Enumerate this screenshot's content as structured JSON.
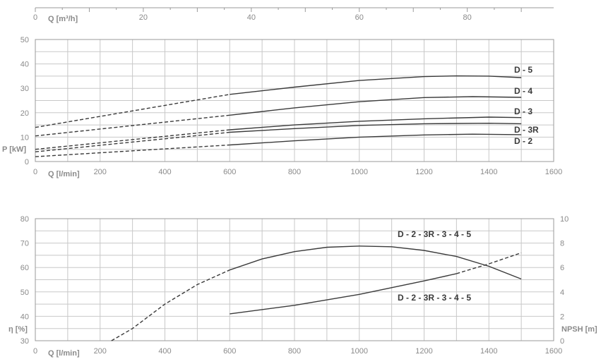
{
  "chart_data": [
    {
      "type": "line",
      "title": "",
      "x_top_axis": {
        "label": "Q [m³/h]",
        "ticks": [
          "0",
          "20",
          "40",
          "60",
          "80"
        ],
        "range": [
          0,
          96
        ]
      },
      "x_axis": {
        "label": "Q [l/min]",
        "ticks": [
          "0",
          "200",
          "400",
          "600",
          "800",
          "1000",
          "1200",
          "1400",
          "1600"
        ],
        "range": [
          0,
          1600
        ]
      },
      "y_axis": {
        "label": "P [kW]",
        "ticks": [
          "0",
          "10",
          "20",
          "30",
          "40",
          "50"
        ],
        "range": [
          0,
          50
        ]
      },
      "grid": true,
      "series": [
        {
          "name": "D - 5",
          "dashed": [
            [
              0,
              14
            ],
            [
              600,
              27.5
            ]
          ],
          "solid": [
            [
              600,
              27.5
            ],
            [
              800,
              30.5
            ],
            [
              1000,
              33.2
            ],
            [
              1200,
              34.8
            ],
            [
              1300,
              35.1
            ],
            [
              1400,
              35
            ],
            [
              1500,
              34.4
            ]
          ]
        },
        {
          "name": "D - 4",
          "dashed": [
            [
              0,
              10.5
            ],
            [
              600,
              19
            ]
          ],
          "solid": [
            [
              600,
              19
            ],
            [
              800,
              22
            ],
            [
              1000,
              24.5
            ],
            [
              1200,
              26.2
            ],
            [
              1350,
              26.6
            ],
            [
              1500,
              26.3
            ]
          ]
        },
        {
          "name": "D - 3",
          "dashed": [
            [
              0,
              5
            ],
            [
              600,
              13
            ]
          ],
          "solid": [
            [
              600,
              13
            ],
            [
              800,
              15
            ],
            [
              1000,
              16.5
            ],
            [
              1200,
              17.5
            ],
            [
              1400,
              18.2
            ],
            [
              1500,
              18
            ]
          ]
        },
        {
          "name": "D - 3R",
          "dashed": [
            [
              0,
              4
            ],
            [
              600,
              12
            ]
          ],
          "solid": [
            [
              600,
              12
            ],
            [
              800,
              13.5
            ],
            [
              1000,
              14.8
            ],
            [
              1200,
              15.5
            ],
            [
              1400,
              15.7
            ],
            [
              1500,
              15.5
            ]
          ]
        },
        {
          "name": "D - 2",
          "dashed": [
            [
              0,
              2
            ],
            [
              600,
              6.8
            ]
          ],
          "solid": [
            [
              600,
              6.8
            ],
            [
              800,
              8.5
            ],
            [
              1000,
              10
            ],
            [
              1200,
              10.9
            ],
            [
              1350,
              11.2
            ],
            [
              1500,
              11
            ]
          ]
        }
      ]
    },
    {
      "type": "line",
      "title": "",
      "x_axis": {
        "label": "Q [l/min]",
        "ticks": [
          "0",
          "200",
          "400",
          "600",
          "800",
          "1000",
          "1200",
          "1400",
          "1600"
        ],
        "range": [
          0,
          1600
        ]
      },
      "y_left_axis": {
        "label": "η [%]",
        "ticks": [
          "30",
          "40",
          "50",
          "60",
          "70",
          "80"
        ],
        "range": [
          30,
          80
        ]
      },
      "y_right_axis": {
        "label": "NPSH [m]",
        "ticks": [
          "0",
          "2",
          "4",
          "6",
          "8",
          "10"
        ],
        "range": [
          0,
          10
        ]
      },
      "grid": true,
      "series": [
        {
          "name": "D - 2 - 3R - 3 - 4 - 5",
          "axis": "left",
          "dashed": [
            [
              235,
              30
            ],
            [
              300,
              35
            ],
            [
              400,
              45
            ],
            [
              500,
              53
            ],
            [
              600,
              59
            ]
          ],
          "solid": [
            [
              600,
              59
            ],
            [
              700,
              63.5
            ],
            [
              800,
              66.5
            ],
            [
              900,
              68.3
            ],
            [
              1000,
              68.8
            ],
            [
              1100,
              68.5
            ],
            [
              1200,
              67
            ],
            [
              1300,
              64.5
            ],
            [
              1400,
              60.5
            ],
            [
              1500,
              55.3
            ]
          ]
        },
        {
          "name": "D - 2 - 3R - 3 - 4 - 5",
          "axis": "right",
          "solid": [
            [
              600,
              2.2
            ],
            [
              800,
              2.9
            ],
            [
              1000,
              3.8
            ],
            [
              1200,
              4.9
            ],
            [
              1300,
              5.5
            ]
          ],
          "dashed": [
            [
              1300,
              5.5
            ],
            [
              1400,
              6.3
            ],
            [
              1500,
              7.2
            ]
          ]
        }
      ]
    }
  ]
}
